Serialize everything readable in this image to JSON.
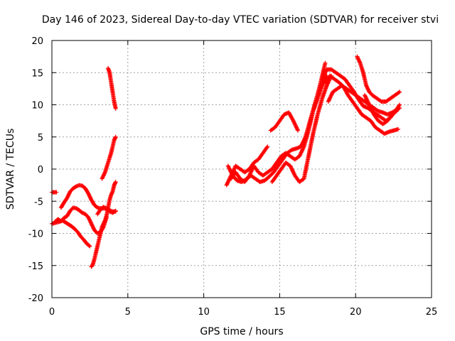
{
  "chart_data": {
    "type": "scatter",
    "title": "Day 146 of 2023, Sidereal Day-to-day VTEC variation (SDTVAR) for receiver stvi",
    "xlabel": "GPS time / hours",
    "ylabel": "SDTVAR / TECUs",
    "xlim": [
      0,
      25
    ],
    "ylim": [
      -20,
      20
    ],
    "xticks": [
      "0",
      "5",
      "10",
      "15",
      "20",
      "25"
    ],
    "yticks": [
      "-20",
      "-15",
      "-10",
      "-5",
      "0",
      "5",
      "10",
      "15",
      "20"
    ],
    "grid": true,
    "marker": "plus",
    "color": "#ff0000",
    "series": [
      {
        "x": [
          0.0,
          0.3
        ],
        "y": [
          -3.6,
          -3.6
        ]
      },
      {
        "x": [
          0.0,
          0.3,
          0.5,
          0.7,
          0.9,
          1.1,
          1.3,
          1.5,
          1.7,
          1.9,
          2.1,
          2.3,
          2.5
        ],
        "y": [
          -8.5,
          -8.3,
          -8.2,
          -8.0,
          -8.3,
          -8.6,
          -8.9,
          -9.3,
          -9.8,
          -10.5,
          -11.0,
          -11.6,
          -12.0
        ]
      },
      {
        "x": [
          0.2,
          0.4,
          0.6,
          0.8,
          1.0,
          1.2,
          1.4,
          1.6,
          1.8,
          2.0,
          2.2,
          2.4,
          2.6,
          2.8,
          3.0,
          3.2,
          3.4,
          3.6
        ],
        "y": [
          -8.2,
          -7.8,
          -8.1,
          -7.6,
          -7.3,
          -6.5,
          -6.0,
          -6.1,
          -6.4,
          -6.8,
          -7.0,
          -7.5,
          -8.5,
          -9.5,
          -10.0,
          -9.8,
          -9.0,
          -7.5
        ]
      },
      {
        "x": [
          0.6,
          0.8,
          1.0,
          1.2,
          1.4,
          1.6,
          1.8,
          2.0,
          2.2,
          2.4,
          2.6,
          2.8,
          3.0,
          3.2,
          3.4,
          3.6,
          3.8,
          4.0,
          4.2
        ],
        "y": [
          -6.0,
          -5.2,
          -4.5,
          -3.5,
          -3.0,
          -2.7,
          -2.5,
          -2.6,
          -3.0,
          -3.8,
          -4.8,
          -5.6,
          -6.0,
          -6.1,
          -6.1,
          -6.2,
          -6.4,
          -6.6,
          -6.6
        ]
      },
      {
        "x": [
          2.6,
          2.7,
          2.8,
          2.9,
          3.0,
          3.1,
          3.2,
          3.3,
          3.4,
          3.5,
          3.6,
          3.7,
          3.8,
          3.9,
          4.0,
          4.1,
          4.2
        ],
        "y": [
          -15.2,
          -14.8,
          -14.0,
          -13.0,
          -12.0,
          -11.0,
          -10.0,
          -9.0,
          -8.5,
          -8.0,
          -7.2,
          -6.0,
          -4.8,
          -4.0,
          -3.5,
          -2.5,
          -2.0
        ]
      },
      {
        "x": [
          3.0,
          3.2,
          3.4,
          3.6,
          3.8,
          4.0,
          4.2
        ],
        "y": [
          -7.0,
          -6.3,
          -5.9,
          -6.1,
          -6.6,
          -6.8,
          -6.5
        ]
      },
      {
        "x": [
          3.3,
          3.5,
          3.7,
          3.9,
          4.0,
          4.1,
          4.2
        ],
        "y": [
          -1.5,
          -0.5,
          1.0,
          2.5,
          3.5,
          4.5,
          5.0
        ]
      },
      {
        "x": [
          3.7,
          3.8,
          3.9,
          4.0,
          4.1,
          4.2
        ],
        "y": [
          15.7,
          15.0,
          13.5,
          12.0,
          10.5,
          9.4
        ]
      },
      {
        "x": [
          11.5,
          11.8,
          12.1,
          12.4,
          12.7,
          13.0,
          13.3,
          13.6,
          13.9,
          14.2
        ],
        "y": [
          -2.5,
          -1.0,
          0.5,
          0.0,
          -0.5,
          0.0,
          1.0,
          1.5,
          2.5,
          3.5
        ]
      },
      {
        "x": [
          11.6,
          11.9,
          12.2,
          12.5,
          12.8,
          13.1,
          13.4,
          13.7,
          14.0,
          14.3,
          14.6,
          14.9,
          15.2,
          15.5,
          15.8,
          16.1,
          16.4,
          16.7,
          17.0,
          17.3,
          17.6,
          17.8,
          18.0
        ],
        "y": [
          0.5,
          -1.0,
          -1.8,
          -2.0,
          -1.6,
          -1.0,
          -1.5,
          -2.0,
          -1.8,
          -1.2,
          -0.5,
          0.5,
          1.5,
          2.5,
          3.0,
          3.2,
          3.5,
          5.0,
          7.5,
          10.0,
          12.5,
          14.5,
          16.5
        ]
      },
      {
        "x": [
          11.8,
          12.1,
          12.4,
          12.7,
          13.0,
          13.3,
          13.6,
          13.9,
          14.2,
          14.5,
          14.8,
          15.1,
          15.4,
          15.7,
          16.0,
          16.3,
          16.6,
          16.9,
          17.2,
          17.5,
          17.8,
          18.1
        ],
        "y": [
          -1.5,
          -0.5,
          -1.5,
          -2.0,
          -1.0,
          0.5,
          -0.5,
          -1.0,
          -0.5,
          0.0,
          1.0,
          2.0,
          2.5,
          2.0,
          1.5,
          2.0,
          3.5,
          6.0,
          9.0,
          11.0,
          13.0,
          14.5
        ]
      },
      {
        "x": [
          14.5,
          14.8,
          15.1,
          15.4,
          15.7,
          16.0,
          16.3,
          16.6,
          16.9,
          17.2,
          17.5,
          17.8,
          18.1,
          18.4
        ],
        "y": [
          -2.0,
          -1.0,
          0.0,
          1.0,
          0.5,
          -1.0,
          -2.0,
          -1.5,
          2.0,
          5.5,
          8.5,
          11.0,
          13.0,
          14.5
        ]
      },
      {
        "x": [
          14.4,
          14.7,
          15.0,
          15.3,
          15.6,
          15.9,
          16.2
        ],
        "y": [
          6.0,
          6.5,
          7.5,
          8.5,
          8.8,
          7.5,
          6.0
        ]
      },
      {
        "x": [
          17.8,
          18.1,
          18.4,
          18.7,
          19.0,
          19.3,
          19.6,
          19.9,
          20.2,
          20.5,
          20.8,
          21.1,
          21.4,
          21.7,
          22.0,
          22.3,
          22.6,
          22.9
        ],
        "y": [
          14.0,
          15.5,
          15.5,
          15.0,
          14.5,
          14.0,
          13.0,
          12.0,
          10.8,
          9.8,
          9.5,
          9.0,
          8.5,
          8.0,
          7.5,
          8.0,
          9.0,
          10.0
        ]
      },
      {
        "x": [
          18.0,
          18.3,
          18.6,
          18.9,
          19.2,
          19.5,
          19.8,
          20.1,
          20.4,
          20.7,
          21.0,
          21.3,
          21.6,
          21.9,
          22.2,
          22.5,
          22.8
        ],
        "y": [
          13.5,
          14.5,
          14.0,
          13.5,
          12.8,
          11.5,
          10.5,
          9.5,
          8.5,
          8.0,
          7.5,
          6.5,
          6.0,
          5.5,
          5.8,
          6.0,
          6.2
        ]
      },
      {
        "x": [
          18.2,
          18.5,
          18.8,
          19.1,
          19.4,
          19.7,
          20.0,
          20.3,
          20.6,
          20.9,
          21.2,
          21.5,
          21.8,
          22.1,
          22.4,
          22.7,
          22.9
        ],
        "y": [
          10.5,
          12.0,
          12.5,
          13.0,
          12.5,
          12.0,
          11.5,
          11.0,
          10.5,
          10.0,
          9.5,
          9.0,
          8.8,
          8.5,
          8.8,
          9.2,
          9.5
        ]
      },
      {
        "x": [
          20.1,
          20.3,
          20.5,
          20.7,
          20.9,
          21.1,
          21.4,
          21.7,
          22.0,
          22.3,
          22.6,
          22.9
        ],
        "y": [
          17.5,
          16.5,
          15.0,
          13.0,
          12.0,
          11.5,
          11.0,
          10.5,
          10.5,
          11.0,
          11.5,
          12.0
        ]
      },
      {
        "x": [
          20.6,
          20.9,
          21.2,
          21.5,
          21.8,
          22.1,
          22.4,
          22.7
        ],
        "y": [
          11.5,
          10.0,
          8.5,
          7.5,
          7.0,
          7.5,
          8.5,
          9.0
        ]
      }
    ]
  }
}
